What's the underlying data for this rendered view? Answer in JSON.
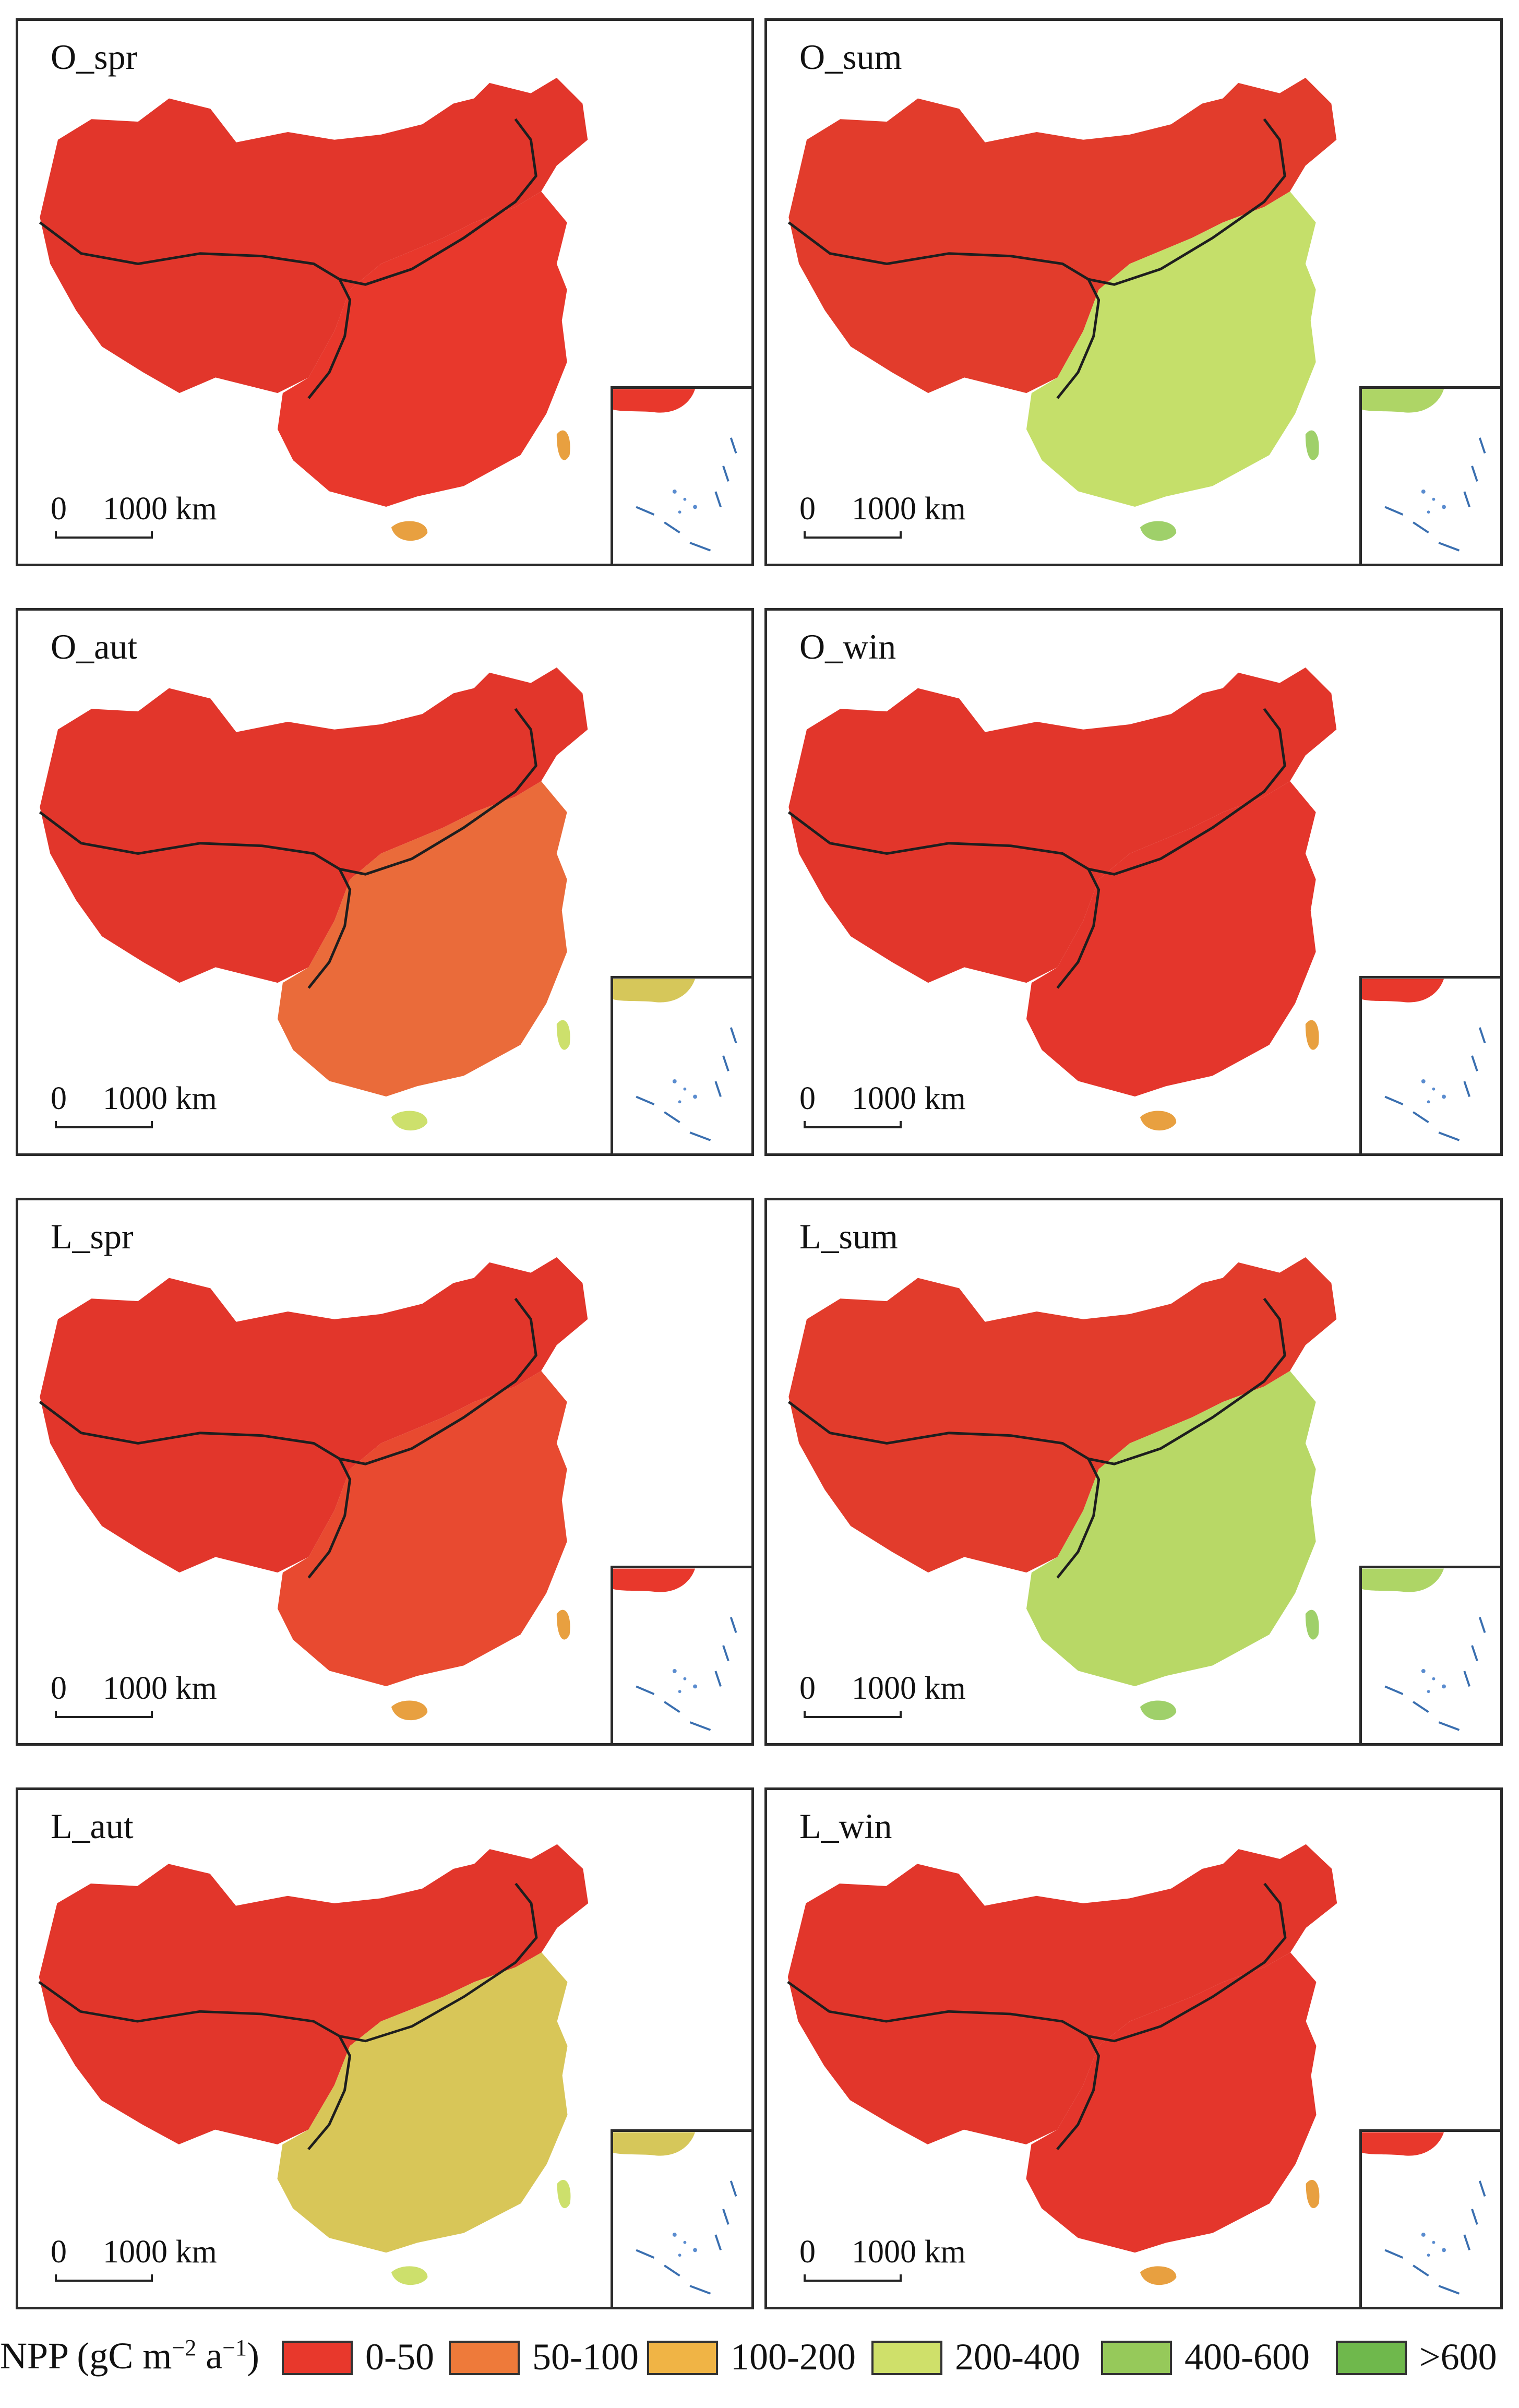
{
  "panels": [
    {
      "label": "O_spr",
      "scale_zero": "0",
      "scale_distance": "1000 km",
      "fill": "#e8382c"
    },
    {
      "label": "O_sum",
      "scale_zero": "0",
      "scale_distance": "1000 km",
      "fill": "#c5df6a"
    },
    {
      "label": "O_aut",
      "scale_zero": "0",
      "scale_distance": "1000 km",
      "fill": "#ea6b3a"
    },
    {
      "label": "O_win",
      "scale_zero": "0",
      "scale_distance": "1000 km",
      "fill": "#e4362c"
    },
    {
      "label": "L_spr",
      "scale_zero": "0",
      "scale_distance": "1000 km",
      "fill": "#e84a30"
    },
    {
      "label": "L_sum",
      "scale_zero": "0",
      "scale_distance": "1000 km",
      "fill": "#b8d866"
    },
    {
      "label": "L_aut",
      "scale_zero": "0",
      "scale_distance": "1000 km",
      "fill": "#d8c658"
    },
    {
      "label": "L_win",
      "scale_zero": "0",
      "scale_distance": "1000 km",
      "fill": "#e4362c"
    }
  ],
  "legend": {
    "title_prefix": "NPP (gC m",
    "title_exp1": "−2",
    "title_mid": " a",
    "title_exp2": "−1",
    "title_suffix": ")",
    "items": [
      {
        "label": "0-50",
        "color": "#e8382c"
      },
      {
        "label": "50-100",
        "color": "#ee7a3a"
      },
      {
        "label": "100-200",
        "color": "#f0b445"
      },
      {
        "label": "200-400",
        "color": "#cfe06a"
      },
      {
        "label": "400-600",
        "color": "#96c95a"
      },
      {
        "label": ">600",
        "color": "#6fb84c"
      }
    ]
  }
}
